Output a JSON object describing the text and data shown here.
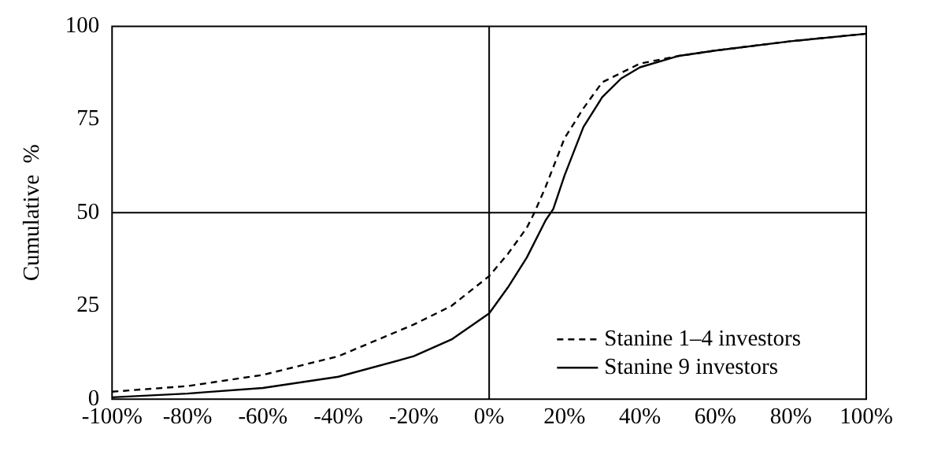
{
  "chart_data": {
    "type": "line",
    "ylabel": "Cumulative  %",
    "xlim": [
      -100,
      100
    ],
    "ylim": [
      0,
      100
    ],
    "xticks": [
      {
        "value": -100,
        "label": "-100%"
      },
      {
        "value": -80,
        "label": "-80%"
      },
      {
        "value": -60,
        "label": "-60%"
      },
      {
        "value": -40,
        "label": "-40%"
      },
      {
        "value": -20,
        "label": "-20%"
      },
      {
        "value": 0,
        "label": "0%"
      },
      {
        "value": 20,
        "label": "20%"
      },
      {
        "value": 40,
        "label": "40%"
      },
      {
        "value": 60,
        "label": "60%"
      },
      {
        "value": 80,
        "label": "80%"
      },
      {
        "value": 100,
        "label": "100%"
      }
    ],
    "yticks": [
      0,
      25,
      50,
      75,
      100
    ],
    "grid": false,
    "legend": "bottom right",
    "marker": "none",
    "ref_lines": [
      {
        "axis": "x",
        "value": 0,
        "color": "#000000"
      },
      {
        "axis": "y",
        "value": 50,
        "color": "#000000"
      }
    ],
    "series": [
      {
        "name": "Stanine 1–4 investors",
        "color": "#000000",
        "line_style": "dashed",
        "x": [
          -100,
          -80,
          -60,
          -40,
          -20,
          -10,
          0,
          5,
          10,
          12,
          15,
          20,
          25,
          30,
          40,
          50,
          60,
          80,
          100
        ],
        "values": [
          2,
          3.5,
          6.5,
          11.5,
          20,
          25,
          33,
          39,
          46,
          50,
          57,
          70,
          78,
          85,
          90,
          92,
          93.5,
          96,
          98
        ]
      },
      {
        "name": "Stanine 9 investors",
        "color": "#000000",
        "line_style": "solid",
        "x": [
          -100,
          -80,
          -60,
          -40,
          -20,
          -10,
          0,
          5,
          10,
          15,
          17,
          20,
          25,
          30,
          35,
          40,
          50,
          60,
          80,
          100
        ],
        "values": [
          0.5,
          1.5,
          3,
          6,
          11.5,
          16,
          23,
          30,
          38,
          48,
          51,
          60,
          73,
          81,
          86,
          89,
          92,
          93.5,
          96,
          98
        ]
      }
    ]
  }
}
